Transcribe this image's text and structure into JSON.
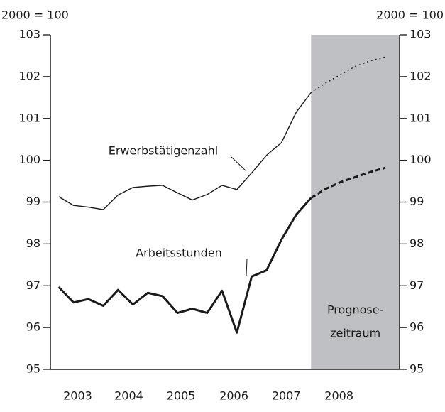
{
  "chart_data": {
    "type": "line",
    "y_unit_label": "2000 = 100",
    "x": [
      2003.0,
      2003.25,
      2003.5,
      2003.75,
      2004.0,
      2004.25,
      2004.5,
      2004.75,
      2005.0,
      2005.25,
      2005.5,
      2005.75,
      2006.0,
      2006.25,
      2006.5,
      2006.75,
      2007.0,
      2007.25,
      2007.5,
      2007.75,
      2008.0,
      2008.25,
      2008.5
    ],
    "series": [
      {
        "name": "Erwerbstätigenzahl",
        "color": "#1a1a1a",
        "width": 1.4,
        "values": [
          99.13,
          98.92,
          98.88,
          98.82,
          99.17,
          99.35,
          99.38,
          99.4,
          99.22,
          99.05,
          99.18,
          99.4,
          99.3,
          99.7,
          100.12,
          100.42,
          101.15,
          101.62,
          101.85,
          102.05,
          102.25,
          102.38,
          102.47
        ]
      },
      {
        "name": "Arbeitsstunden",
        "color": "#1a1a1a",
        "width": 3,
        "values": [
          96.97,
          96.6,
          96.68,
          96.52,
          96.9,
          96.55,
          96.83,
          96.75,
          96.35,
          96.45,
          96.35,
          96.88,
          95.88,
          97.22,
          97.37,
          98.1,
          98.7,
          99.1,
          99.32,
          99.48,
          99.6,
          99.72,
          99.82
        ]
      }
    ],
    "forecast_start": 2007.25,
    "forecast_label": [
      "Prognose-",
      "zeitraum"
    ],
    "forecast_color": "#bfc0c4",
    "xlim": [
      2002.86,
      2008.74
    ],
    "xticks": [
      {
        "value": 2003.32,
        "label": "2003"
      },
      {
        "value": 2004.18,
        "label": "2004"
      },
      {
        "value": 2005.06,
        "label": "2005"
      },
      {
        "value": 2005.95,
        "label": "2006"
      },
      {
        "value": 2006.83,
        "label": "2007"
      },
      {
        "value": 2007.72,
        "label": "2008"
      }
    ],
    "ylim": [
      95,
      103
    ],
    "yticks": [
      95,
      96,
      97,
      98,
      99,
      100,
      101,
      102,
      103
    ]
  }
}
